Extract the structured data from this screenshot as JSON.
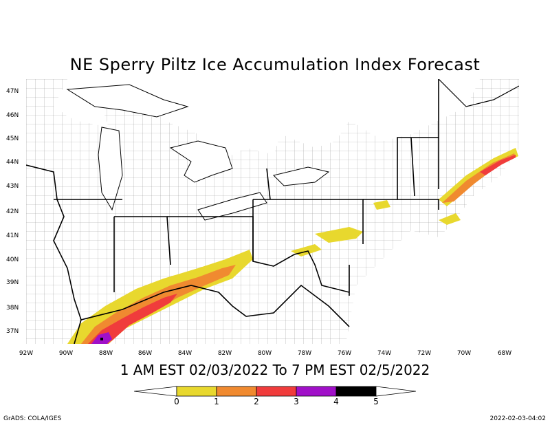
{
  "title": "NE Sperry Piltz Ice Accumulation Index Forecast",
  "subtitle": "1 AM EST 02/03/2022 To 7 PM EST 02/5/2022",
  "lat_labels": [
    "47N",
    "46N",
    "45N",
    "44N",
    "43N",
    "42N",
    "41N",
    "40N",
    "39N",
    "38N",
    "37N"
  ],
  "lon_labels": [
    "92W",
    "90W",
    "88W",
    "86W",
    "84W",
    "82W",
    "80W",
    "78W",
    "76W",
    "74W",
    "72W",
    "70W",
    "68W"
  ],
  "legend": {
    "labels": [
      "0",
      "1",
      "2",
      "3",
      "4",
      "5"
    ],
    "colors": [
      "#e8d82e",
      "#f08a30",
      "#f03c3c",
      "#a010c8",
      "#000000"
    ]
  },
  "credit": "GrADS: COLA/IGES",
  "timestamp": "2022-02-03-04:02",
  "colors": {
    "level_0_1": "#e8d82e",
    "level_1_2": "#f08a30",
    "level_2_3": "#f03c3c",
    "level_3_4": "#a010c8",
    "level_4_5": "#000000"
  }
}
